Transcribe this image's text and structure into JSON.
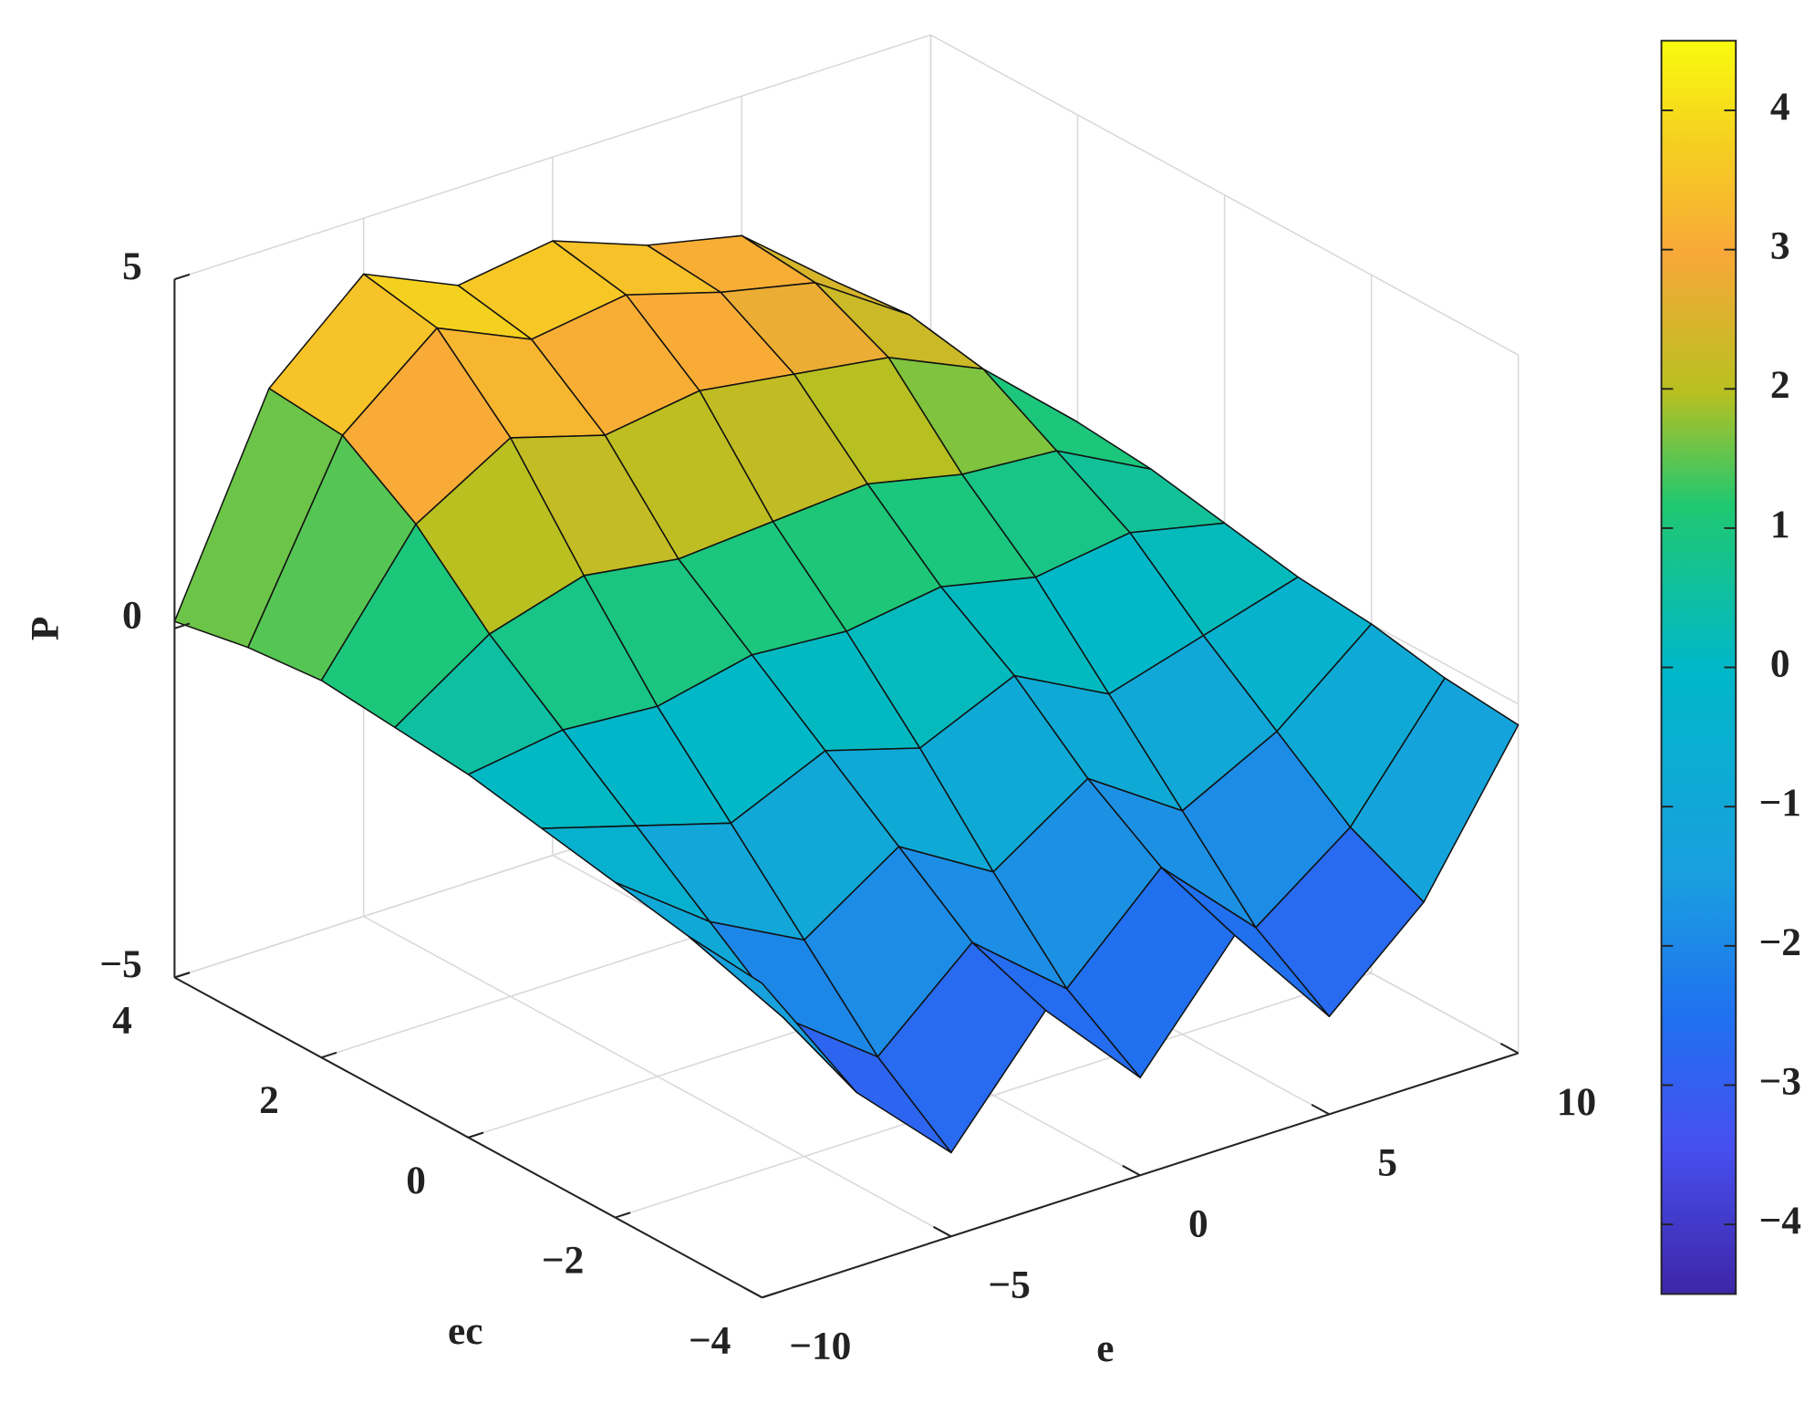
{
  "chart_data": {
    "type": "surface",
    "x_label": "e",
    "y_label": "ec",
    "z_label": "P",
    "x": [
      -10,
      -7.5,
      -5,
      -2.5,
      0,
      2.5,
      5,
      7.5,
      10
    ],
    "y": [
      -4,
      -3,
      -2,
      -1,
      0,
      1,
      2,
      3,
      4
    ],
    "z": [
      [
        -0.5,
        -2.5,
        -3.8,
        -2.2,
        -3.6,
        -2.0,
        -3.6,
        -2.4,
        -0.3
      ],
      [
        -0.4,
        -2.0,
        -3.0,
        -1.8,
        -2.9,
        -1.6,
        -2.9,
        -1.9,
        -0.2
      ],
      [
        -0.2,
        -1.2,
        -1.9,
        -1.0,
        -1.8,
        -0.9,
        -1.8,
        -1.1,
        0.0
      ],
      [
        0.0,
        -0.4,
        -0.8,
        -0.2,
        -0.6,
        0.0,
        -0.7,
        -0.3,
        0.1
      ],
      [
        0.2,
        0.4,
        0.3,
        0.6,
        0.5,
        0.7,
        0.4,
        0.6,
        0.3
      ],
      [
        0.3,
        1.2,
        1.6,
        1.4,
        1.5,
        1.6,
        1.3,
        1.2,
        0.5
      ],
      [
        0.4,
        2.2,
        3.0,
        2.6,
        2.8,
        2.6,
        2.4,
        1.8,
        0.6
      ],
      [
        0.3,
        2.9,
        4.0,
        3.4,
        3.6,
        3.2,
        2.9,
        2.0,
        0.5
      ],
      [
        0.1,
        3.0,
        4.2,
        3.6,
        3.8,
        3.3,
        3.0,
        1.9,
        0.4
      ]
    ],
    "xlim": [
      -10,
      10
    ],
    "xticks": [
      {
        "value": -10,
        "label": "−10"
      },
      {
        "value": -5,
        "label": "−5"
      },
      0,
      5,
      10
    ],
    "ylim": [
      -4,
      4
    ],
    "yticks": [
      {
        "value": -4,
        "label": "−4"
      },
      {
        "value": -2,
        "label": "−2"
      },
      0,
      2,
      4
    ],
    "zlim": [
      -5,
      5
    ],
    "zticks": [
      {
        "value": -5,
        "label": "−5"
      },
      0,
      5
    ],
    "grid": true,
    "colormap": "parula",
    "clim": [
      -4.5,
      4.5
    ],
    "cticks": [
      {
        "value": -4,
        "label": "−4"
      },
      {
        "value": -3,
        "label": "−3"
      },
      {
        "value": -2,
        "label": "−2"
      },
      {
        "value": -1,
        "label": "−1"
      },
      0,
      1,
      2,
      3,
      4
    ]
  }
}
